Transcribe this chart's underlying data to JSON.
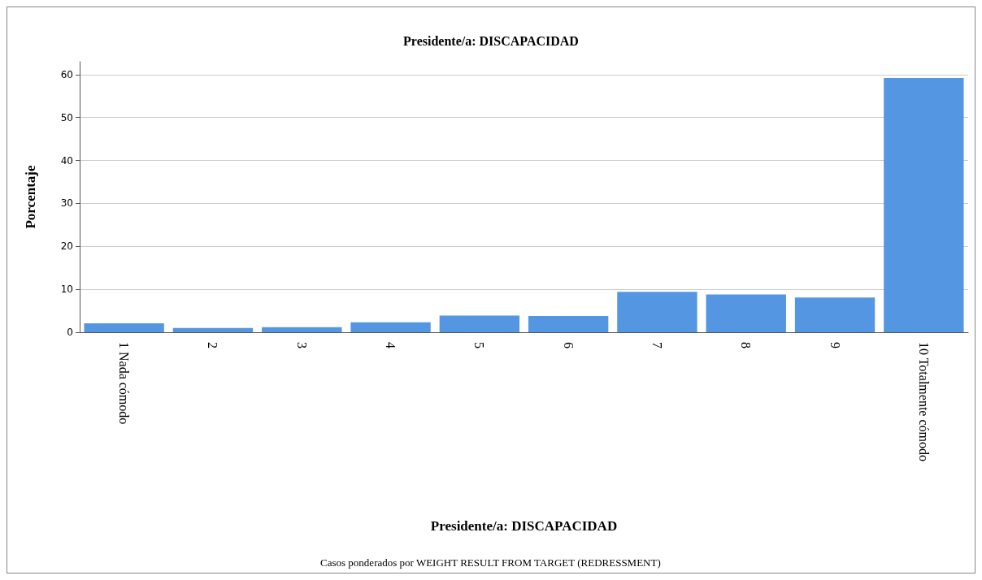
{
  "chart_data": {
    "type": "bar",
    "title": "Presidente/a: DISCAPACIDAD",
    "xlabel": "Presidente/a: DISCAPACIDAD",
    "ylabel": "Porcentaje",
    "categories": [
      "1 Nada cómodo",
      "2",
      "3",
      "4",
      "5",
      "6",
      "7",
      "8",
      "9",
      "10 Totalmente cómodo"
    ],
    "values": [
      2.1,
      1.0,
      1.2,
      2.3,
      3.9,
      3.8,
      9.4,
      8.8,
      8.1,
      59.2
    ],
    "color": "#5596e3",
    "ylim": [
      0,
      63
    ],
    "yticks": [
      0,
      10,
      20,
      30,
      40,
      50,
      60
    ],
    "grid": "y",
    "annotations": [
      "Casos ponderados por WEIGHT RESULT FROM TARGET (REDRESSMENT)"
    ]
  }
}
